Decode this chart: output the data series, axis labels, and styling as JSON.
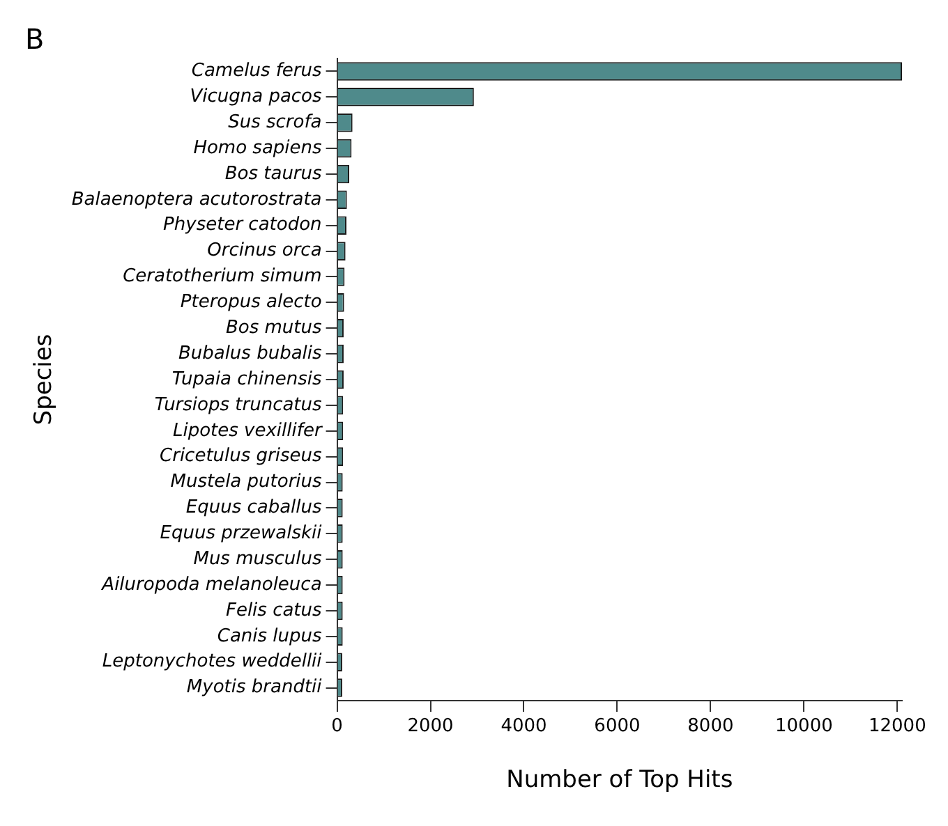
{
  "chart_data": {
    "type": "bar",
    "orientation": "horizontal",
    "title": "B",
    "xlabel": "Number of Top Hits",
    "ylabel": "Species",
    "categories": [
      "Camelus ferus",
      "Vicugna pacos",
      "Sus scrofa",
      "Homo sapiens",
      "Bos taurus",
      "Balaenoptera acutorostrata",
      "Physeter catodon",
      "Orcinus orca",
      "Ceratotherium simum",
      "Pteropus alecto",
      "Bos mutus",
      "Bubalus bubalis",
      "Tupaia chinensis",
      "Tursiops truncatus",
      "Lipotes vexillifer",
      "Cricetulus griseus",
      "Mustela putorius",
      "Equus caballus",
      "Equus przewalskii",
      "Mus musculus",
      "Ailuropoda melanoleuca",
      "Felis catus",
      "Canis lupus",
      "Leptonychotes weddellii",
      "Myotis brandtii"
    ],
    "series": [
      {
        "color": "#4f8a8b",
        "values": [
          12100,
          2930,
          330,
          310,
          260,
          210,
          200,
          180,
          160,
          150,
          140,
          140,
          140,
          130,
          130,
          130,
          120,
          120,
          120,
          120,
          120,
          120,
          120,
          110,
          110
        ]
      }
    ],
    "xlim": [
      0,
      12100
    ],
    "xticks": [
      0,
      2000,
      4000,
      6000,
      8000,
      10000,
      12000
    ],
    "grid": false,
    "legend": false
  }
}
